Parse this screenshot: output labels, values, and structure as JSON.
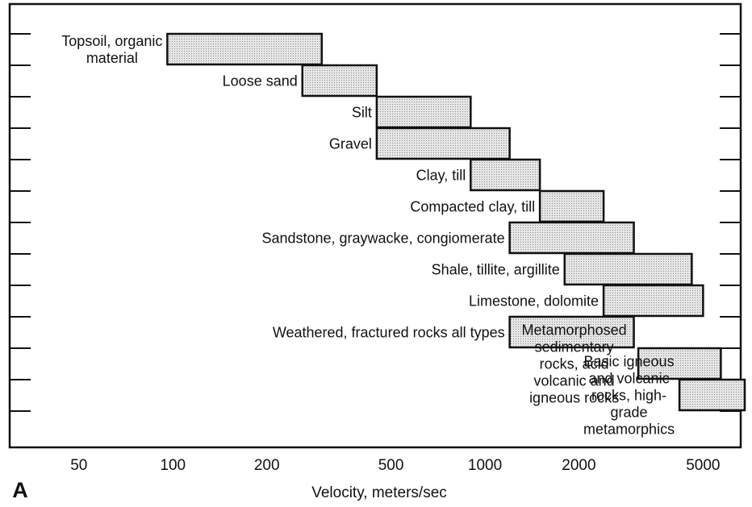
{
  "chart_data": {
    "type": "range-bar",
    "categories": [
      "Topsoil, organic\nmaterial",
      "Loose sand",
      "Silt",
      "Gravel",
      "Clay, till",
      "Compacted clay, till",
      "Sandstone, graywacke, congiomerate",
      "Shale, tillite, argillite",
      "Limestone, dolomite",
      "Weathered, fractured rocks all types",
      "Metamorphosed sedimentary rocks, acid volcanic and igneous rocks",
      "Basic igneous and volcanic rocks, high-grade metamorphics"
    ],
    "low": [
      96,
      260,
      450,
      450,
      900,
      1500,
      1200,
      1800,
      2400,
      1200,
      3100,
      4200
    ],
    "high": [
      300,
      450,
      900,
      1200,
      1500,
      2400,
      3000,
      4600,
      5000,
      3000,
      5700,
      6800
    ],
    "color": "#d9d9d9",
    "xlabel": "Velocity, meters/sec",
    "panel_label": "A",
    "xscale": "log",
    "xlim": [
      30,
      6600
    ],
    "xticks": [
      50,
      100,
      200,
      500,
      1000,
      2000,
      5000
    ]
  }
}
